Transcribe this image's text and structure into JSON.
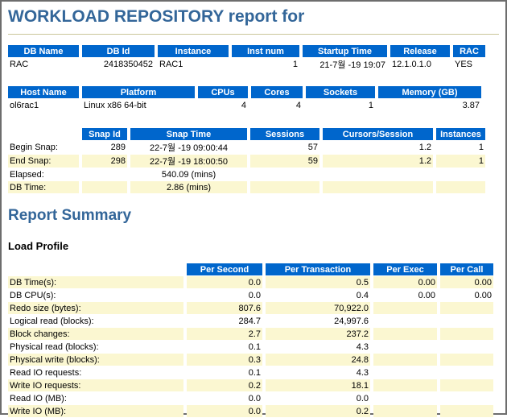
{
  "page": {
    "title": "WORKLOAD REPOSITORY report for",
    "section_heading": "Report Summary",
    "subsection_heading": "Load Profile"
  },
  "colors": {
    "table_header_bg": "#0066CC",
    "table_header_text": "#FFFFFF",
    "heading_text": "#336699",
    "alt_row_bg": "#FBF7D1",
    "title_underline": "#CBC69A",
    "page_border": "#6D6D6D"
  },
  "db_info_table": {
    "headers": [
      "DB Name",
      "DB Id",
      "Instance",
      "Inst num",
      "Startup Time",
      "Release",
      "RAC"
    ],
    "rows": [
      [
        "RAC",
        "2418350452",
        "RAC1",
        "1",
        "21-7월 -19 19:07",
        "12.1.0.1.0",
        "YES"
      ]
    ]
  },
  "host_info_table": {
    "headers": [
      "Host Name",
      "Platform",
      "CPUs",
      "Cores",
      "Sockets",
      "Memory (GB)"
    ],
    "rows": [
      [
        "ol6rac1",
        "Linux x86 64-bit",
        "4",
        "4",
        "1",
        "3.87"
      ]
    ]
  },
  "snapshot_table": {
    "headers": [
      "",
      "Snap Id",
      "Snap Time",
      "Sessions",
      "Cursors/Session",
      "Instances"
    ],
    "rows": [
      [
        "Begin Snap:",
        "289",
        "22-7월 -19 09:00:44",
        "57",
        "1.2",
        "1"
      ],
      [
        "End Snap:",
        "298",
        "22-7월 -19 18:00:50",
        "59",
        "1.2",
        "1"
      ],
      [
        "Elapsed:",
        "",
        "540.09 (mins)",
        "",
        "",
        ""
      ],
      [
        "DB Time:",
        "",
        "2.86 (mins)",
        "",
        "",
        ""
      ]
    ]
  },
  "load_profile_table": {
    "headers": [
      "",
      "Per Second",
      "Per Transaction",
      "Per Exec",
      "Per Call"
    ],
    "rows": [
      [
        "DB Time(s):",
        "0.0",
        "0.5",
        "0.00",
        "0.00"
      ],
      [
        "DB CPU(s):",
        "0.0",
        "0.4",
        "0.00",
        "0.00"
      ],
      [
        "Redo size (bytes):",
        "807.6",
        "70,922.0",
        "",
        ""
      ],
      [
        "Logical read (blocks):",
        "284.7",
        "24,997.6",
        "",
        ""
      ],
      [
        "Block changes:",
        "2.7",
        "237.2",
        "",
        ""
      ],
      [
        "Physical read (blocks):",
        "0.1",
        "4.3",
        "",
        ""
      ],
      [
        "Physical write (blocks):",
        "0.3",
        "24.8",
        "",
        ""
      ],
      [
        "Read IO requests:",
        "0.1",
        "4.3",
        "",
        ""
      ],
      [
        "Write IO requests:",
        "0.2",
        "18.1",
        "",
        ""
      ],
      [
        "Read IO (MB):",
        "0.0",
        "0.0",
        "",
        ""
      ],
      [
        "Write IO (MB):",
        "0.0",
        "0.2",
        "",
        ""
      ]
    ]
  }
}
